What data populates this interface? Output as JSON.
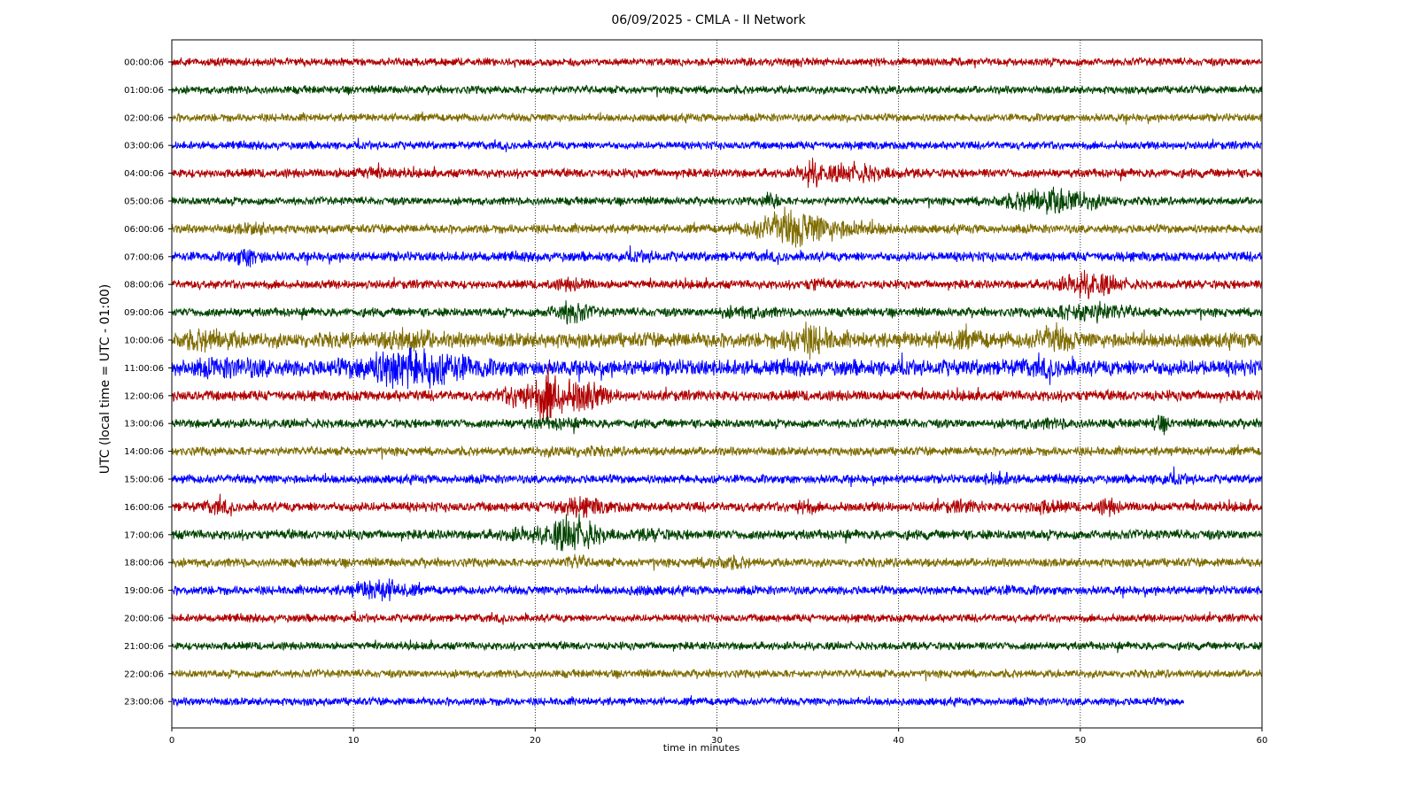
{
  "chart_data": {
    "type": "line",
    "title": "06/09/2025 - CMLA - II Network",
    "xlabel": "time in minutes",
    "ylabel": "UTC (local time = UTC - 01:00)",
    "xlim": [
      0,
      60
    ],
    "xticks": [
      0,
      10,
      20,
      30,
      40,
      50,
      60
    ],
    "grid": "vertical dotted at x ticks",
    "line_colors": [
      "#b00000",
      "#004400",
      "#7f6c00",
      "#0000ff"
    ],
    "traces": [
      {
        "label": "00:00:06",
        "color": "#b00000",
        "end_minute": 60,
        "amplitude": 0.9,
        "events": []
      },
      {
        "label": "01:00:06",
        "color": "#004400",
        "end_minute": 60,
        "amplitude": 0.9,
        "events": []
      },
      {
        "label": "02:00:06",
        "color": "#7f6c00",
        "end_minute": 60,
        "amplitude": 0.9,
        "events": []
      },
      {
        "label": "03:00:06",
        "color": "#0000ff",
        "end_minute": 60,
        "amplitude": 0.9,
        "events": []
      },
      {
        "label": "04:00:06",
        "color": "#b00000",
        "end_minute": 60,
        "amplitude": 1.0,
        "events": [
          [
            11,
            1.5,
            1.5
          ],
          [
            35.2,
            2.8,
            0.6
          ],
          [
            37.5,
            2.2,
            2.0
          ]
        ]
      },
      {
        "label": "05:00:06",
        "color": "#004400",
        "end_minute": 60,
        "amplitude": 0.9,
        "events": [
          [
            33,
            2.5,
            0.4
          ],
          [
            48.5,
            3.2,
            2.5
          ]
        ]
      },
      {
        "label": "06:00:06",
        "color": "#7f6c00",
        "end_minute": 60,
        "amplitude": 1.0,
        "events": [
          [
            4.5,
            1.6,
            1.0
          ],
          [
            34,
            4.0,
            2.0
          ],
          [
            37,
            1.8,
            2.5
          ]
        ]
      },
      {
        "label": "07:00:06",
        "color": "#0000ff",
        "end_minute": 60,
        "amplitude": 1.1,
        "events": [
          [
            4.2,
            2.2,
            0.8
          ],
          [
            26,
            1.3,
            1.0
          ]
        ]
      },
      {
        "label": "08:00:06",
        "color": "#b00000",
        "end_minute": 60,
        "amplitude": 1.0,
        "events": [
          [
            22,
            1.6,
            1.0
          ],
          [
            35.5,
            1.6,
            0.6
          ],
          [
            50.5,
            3.0,
            1.5
          ]
        ]
      },
      {
        "label": "09:00:06",
        "color": "#004400",
        "end_minute": 60,
        "amplitude": 1.0,
        "events": [
          [
            22,
            2.8,
            1.0
          ],
          [
            31.5,
            1.6,
            1.5
          ],
          [
            50.5,
            2.5,
            2.0
          ]
        ]
      },
      {
        "label": "10:00:06",
        "color": "#7f6c00",
        "end_minute": 60,
        "amplitude": 1.7,
        "events": [
          [
            2,
            2.0,
            1.5
          ],
          [
            13,
            2.0,
            1.5
          ],
          [
            35,
            3.2,
            1.2
          ],
          [
            43.5,
            1.6,
            1.5
          ],
          [
            48.5,
            2.6,
            1.0
          ]
        ]
      },
      {
        "label": "11:00:06",
        "color": "#0000ff",
        "end_minute": 60,
        "amplitude": 1.8,
        "events": [
          [
            3.5,
            1.8,
            2.0
          ],
          [
            13,
            4.2,
            2.5
          ],
          [
            16,
            1.6,
            1.5
          ],
          [
            48,
            1.4,
            1.5
          ]
        ]
      },
      {
        "label": "12:00:06",
        "color": "#b00000",
        "end_minute": 60,
        "amplitude": 1.2,
        "events": [
          [
            19.5,
            3.0,
            1.2
          ],
          [
            20.8,
            5.5,
            0.6
          ],
          [
            22.5,
            4.0,
            1.2
          ]
        ]
      },
      {
        "label": "13:00:06",
        "color": "#004400",
        "end_minute": 60,
        "amplitude": 1.0,
        "events": [
          [
            21,
            1.5,
            1.5
          ],
          [
            48,
            1.3,
            2.0
          ],
          [
            54.4,
            2.0,
            0.5
          ]
        ]
      },
      {
        "label": "14:00:06",
        "color": "#7f6c00",
        "end_minute": 60,
        "amplitude": 1.0,
        "events": [
          [
            22,
            1.3,
            2.0
          ]
        ]
      },
      {
        "label": "15:00:06",
        "color": "#0000ff",
        "end_minute": 60,
        "amplitude": 1.0,
        "events": [
          [
            45.5,
            1.7,
            0.8
          ],
          [
            55,
            1.4,
            1.0
          ]
        ]
      },
      {
        "label": "16:00:06",
        "color": "#b00000",
        "end_minute": 60,
        "amplitude": 1.1,
        "events": [
          [
            2.5,
            1.8,
            0.6
          ],
          [
            22.5,
            2.2,
            1.5
          ],
          [
            34.8,
            2.0,
            0.5
          ],
          [
            43.5,
            1.5,
            1.0
          ],
          [
            48,
            1.7,
            1.0
          ],
          [
            51.5,
            2.0,
            0.6
          ]
        ]
      },
      {
        "label": "17:00:06",
        "color": "#004400",
        "end_minute": 60,
        "amplitude": 1.1,
        "events": [
          [
            19,
            1.5,
            1.0
          ],
          [
            22,
            4.0,
            1.5
          ],
          [
            26.5,
            1.5,
            1.0
          ]
        ]
      },
      {
        "label": "18:00:06",
        "color": "#7f6c00",
        "end_minute": 60,
        "amplitude": 1.0,
        "events": [
          [
            22.2,
            1.8,
            0.6
          ],
          [
            30.5,
            1.7,
            1.2
          ]
        ]
      },
      {
        "label": "19:00:06",
        "color": "#0000ff",
        "end_minute": 60,
        "amplitude": 1.0,
        "events": [
          [
            11.5,
            2.6,
            1.5
          ],
          [
            26,
            1.2,
            1.0
          ],
          [
            46,
            1.2,
            1.5
          ]
        ]
      },
      {
        "label": "20:00:06",
        "color": "#b00000",
        "end_minute": 60,
        "amplitude": 0.9,
        "events": []
      },
      {
        "label": "21:00:06",
        "color": "#004400",
        "end_minute": 60,
        "amplitude": 0.9,
        "events": []
      },
      {
        "label": "22:00:06",
        "color": "#7f6c00",
        "end_minute": 60,
        "amplitude": 0.9,
        "events": []
      },
      {
        "label": "23:00:06",
        "color": "#0000ff",
        "end_minute": 55.7,
        "amplitude": 0.9,
        "events": []
      }
    ]
  }
}
